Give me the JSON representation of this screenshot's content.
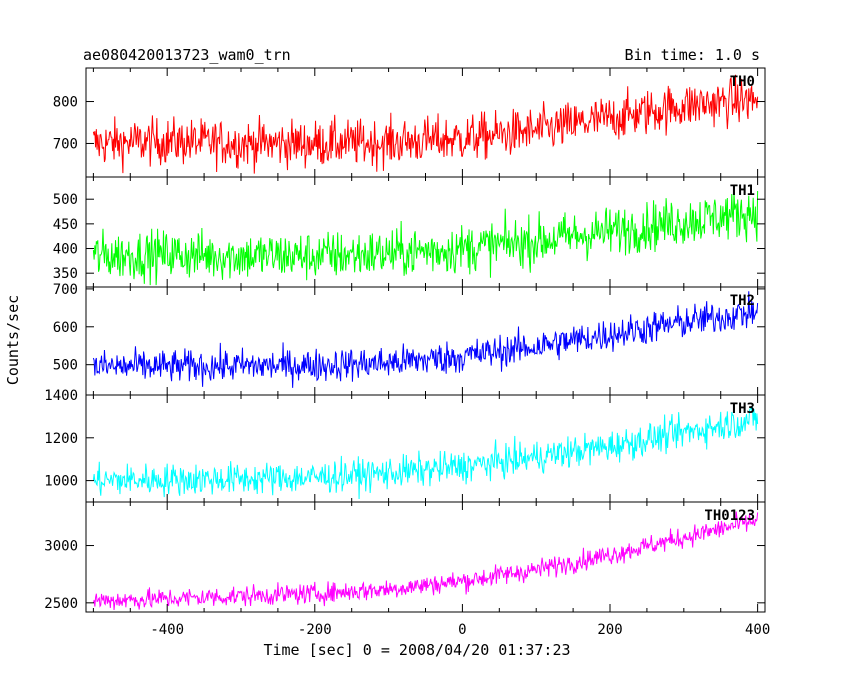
{
  "header": {
    "title": "ae080420013723_wam0_trn",
    "bin_time": "Bin time: 1.0 s"
  },
  "chart_data": {
    "type": "line",
    "title": "ae080420013723_wam0_trn",
    "subtitle": "Bin time: 1.0 s",
    "xlabel": "Time [sec] 0 = 2008/04/20 01:37:23",
    "ylabel": "Counts/sec",
    "xlim": [
      -510,
      410
    ],
    "xticks": [
      -400,
      -200,
      0,
      200,
      400
    ],
    "grid": false,
    "series": [
      {
        "name": "TH0",
        "color": "#ff0000",
        "ylim": [
          620,
          880
        ],
        "yticks": [
          700,
          800
        ],
        "x": [
          -500,
          -400,
          -300,
          -200,
          -100,
          0,
          100,
          200,
          300,
          400
        ],
        "y": [
          700,
          705,
          700,
          700,
          702,
          712,
          730,
          760,
          790,
          805
        ],
        "noise": 28
      },
      {
        "name": "TH1",
        "color": "#00ff00",
        "ylim": [
          322,
          545
        ],
        "yticks": [
          350,
          400,
          450,
          500
        ],
        "x": [
          -500,
          -400,
          -300,
          -200,
          -100,
          0,
          100,
          200,
          300,
          400
        ],
        "y": [
          385,
          388,
          385,
          385,
          390,
          400,
          415,
          435,
          455,
          475
        ],
        "noise": 25
      },
      {
        "name": "TH2",
        "color": "#0000ff",
        "ylim": [
          420,
          705
        ],
        "yticks": [
          500,
          600,
          700
        ],
        "x": [
          -500,
          -400,
          -300,
          -200,
          -100,
          0,
          100,
          200,
          300,
          400
        ],
        "y": [
          495,
          495,
          497,
          498,
          505,
          522,
          548,
          580,
          612,
          640
        ],
        "noise": 22
      },
      {
        "name": "TH3",
        "color": "#00ffff",
        "ylim": [
          900,
          1400
        ],
        "yticks": [
          1000,
          1200,
          1400
        ],
        "x": [
          -500,
          -400,
          -300,
          -200,
          -100,
          0,
          100,
          200,
          300,
          400
        ],
        "y": [
          1000,
          1005,
          1008,
          1015,
          1035,
          1065,
          1110,
          1160,
          1225,
          1290
        ],
        "noise": 38
      },
      {
        "name": "TH0123",
        "color": "#ff00ff",
        "ylim": [
          2420,
          3380
        ],
        "yticks": [
          2500,
          3000
        ],
        "x": [
          -500,
          -400,
          -300,
          -200,
          -100,
          0,
          100,
          200,
          300,
          400
        ],
        "y": [
          2520,
          2535,
          2560,
          2580,
          2620,
          2690,
          2790,
          2920,
          3070,
          3220
        ],
        "noise": 45
      }
    ]
  }
}
